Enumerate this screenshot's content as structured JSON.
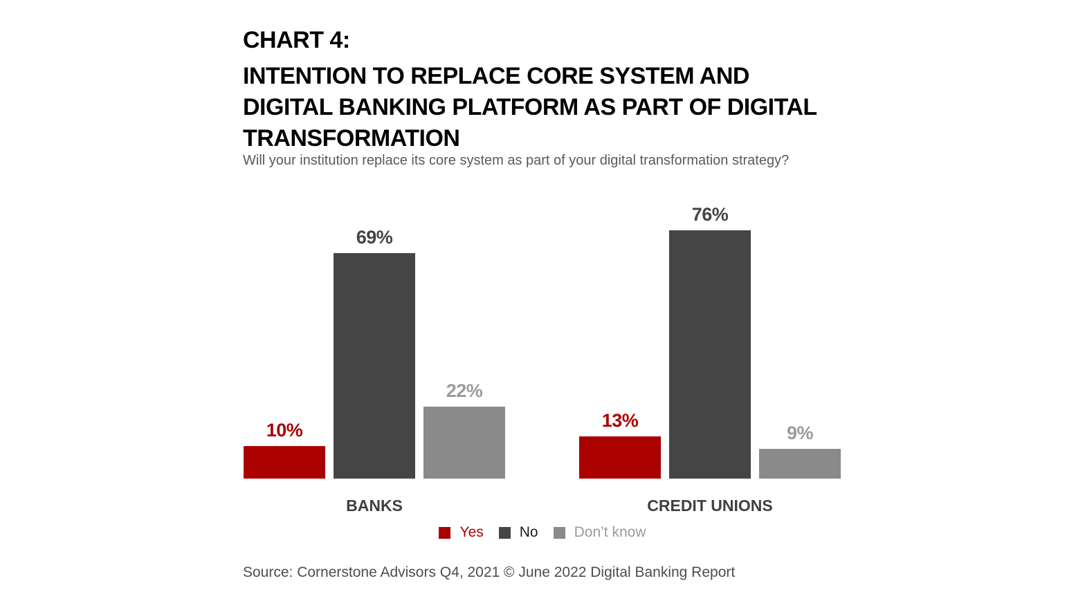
{
  "header": {
    "kicker": "CHART 4:",
    "title_lines": [
      "INTENTION TO REPLACE CORE SYSTEM AND",
      "DIGITAL BANKING PLATFORM AS PART OF DIGITAL",
      "TRANSFORMATION"
    ],
    "subtitle": "Will your institution replace its core system as part of your digital transformation strategy?"
  },
  "chart_data": {
    "type": "bar",
    "title": "CHART 4: INTENTION TO REPLACE CORE SYSTEM AND DIGITAL BANKING PLATFORM AS PART OF DIGITAL TRANSFORMATION",
    "subtitle": "Will your institution replace its core system as part of your digital transformation strategy?",
    "categories": [
      "BANKS",
      "CREDIT UNIONS"
    ],
    "series": [
      {
        "name": "Yes",
        "values": [
          10,
          13
        ],
        "color": "#aa0000",
        "value_label_color": "#aa0000",
        "legend_text_color": "#aa0000"
      },
      {
        "name": "No",
        "values": [
          69,
          76
        ],
        "color": "#454545",
        "value_label_color": "#454545",
        "legend_text_color": "#1a1a1a"
      },
      {
        "name": "Don’t know",
        "values": [
          22,
          9
        ],
        "color": "#8a8a8a",
        "value_label_color": "#9b9b9b",
        "legend_text_color": "#9b9b9b"
      }
    ],
    "value_labels": [
      [
        "10%",
        "13%"
      ],
      [
        "69%",
        "76%"
      ],
      [
        "22%",
        "9%"
      ]
    ],
    "value_suffix": "%",
    "xlabel": "",
    "ylabel": "",
    "ylim": [
      0,
      80
    ],
    "grid": false,
    "axis_lines": false,
    "legend_position": "bottom-center",
    "category_label_color": "#404040"
  },
  "colors": {
    "background": "#ffffff",
    "accent_red": "#aa0000",
    "dark_gray": "#454545",
    "light_gray": "#8a8a8a",
    "title_text": "#000000",
    "subtitle_text": "#58595b",
    "source_text": "#4d4d4f"
  },
  "footer": {
    "source": "Source: Cornerstone Advisors Q4, 2021 © June 2022 Digital Banking Report"
  }
}
